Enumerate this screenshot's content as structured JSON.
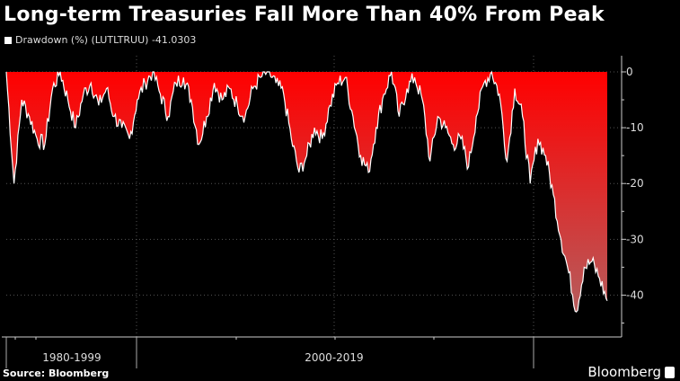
{
  "title": "Long-term Treasuries Fall More Than 40% From Peak",
  "legend": {
    "label": "Drawdown (%) (LUTLTRUU) -41.0303"
  },
  "source": "Source: Bloomberg",
  "brand": "Bloomberg",
  "chart_data": {
    "type": "area",
    "title": "Long-term Treasuries Fall More Than 40% From Peak",
    "series": [
      {
        "name": "Drawdown (%) (LUTLTRUU)",
        "last": -41.0303,
        "color": "#ffffff",
        "values": [
          0,
          -20,
          -5,
          -8,
          -12,
          -13,
          -3,
          0,
          -5,
          -10,
          -4,
          -2,
          -6,
          -3,
          -8,
          -10,
          -12,
          -5,
          -2,
          0,
          -4,
          -8,
          -2,
          -1,
          -5,
          -13,
          -8,
          -2,
          -5,
          -3,
          -6,
          -8,
          -3,
          -1,
          0,
          -2,
          -4,
          -12,
          -18,
          -15,
          -10,
          -12,
          -6,
          -2,
          -1,
          -8,
          -15,
          -18,
          -10,
          -4,
          0,
          -8,
          -3,
          -1,
          -5,
          -16,
          -8,
          -10,
          -13,
          -12,
          -17,
          -8,
          -2,
          0,
          -4,
          -16,
          -3,
          -8,
          -20,
          -12,
          -15,
          -22,
          -30,
          -36,
          -43,
          -35,
          -34,
          -37,
          -41.03
        ]
      }
    ],
    "x_period_labels": [
      "1980-1999",
      "2000-2019"
    ],
    "y_ticks": [
      0,
      -10,
      -20,
      -30,
      -40
    ],
    "ylim": [
      -47.5,
      0
    ],
    "grid": true,
    "fill_gradient": [
      "#ff0000",
      "#b85a5a"
    ],
    "legend_position": "top-left"
  }
}
